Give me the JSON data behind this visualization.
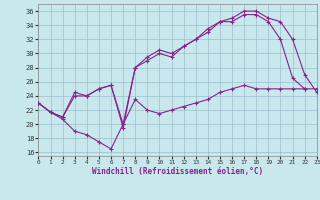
{
  "xlabel": "Windchill (Refroidissement éolien,°C)",
  "xlim": [
    0,
    23
  ],
  "ylim": [
    15.5,
    37
  ],
  "xticks": [
    0,
    1,
    2,
    3,
    4,
    5,
    6,
    7,
    8,
    9,
    10,
    11,
    12,
    13,
    14,
    15,
    16,
    17,
    18,
    19,
    20,
    21,
    22,
    23
  ],
  "yticks": [
    16,
    18,
    20,
    22,
    24,
    26,
    28,
    30,
    32,
    34,
    36
  ],
  "bg_color": "#c8e8ee",
  "grid_color": "#9bbfcc",
  "line_color": "#882288",
  "line1_x": [
    0,
    1,
    2,
    3,
    4,
    5,
    6,
    7,
    8,
    9,
    10,
    11,
    12,
    13,
    14,
    15,
    16,
    17,
    18,
    19,
    20,
    21,
    22,
    23
  ],
  "line1_y": [
    23,
    21.7,
    20.7,
    19.0,
    18.5,
    17.5,
    16.5,
    20.0,
    23.5,
    22.0,
    21.5,
    22.0,
    22.5,
    23.0,
    23.5,
    24.5,
    25.0,
    25.5,
    25.0,
    25.0,
    25.0,
    25.0,
    25.0,
    25.0
  ],
  "line2_x": [
    0,
    1,
    2,
    3,
    4,
    5,
    6,
    7,
    8,
    9,
    10,
    11,
    12,
    13,
    14,
    15,
    16,
    17,
    18,
    19,
    20,
    21,
    22
  ],
  "line2_y": [
    23,
    21.7,
    21.0,
    24.5,
    24.0,
    25.0,
    25.5,
    19.5,
    28.0,
    29.5,
    30.5,
    30.0,
    31.0,
    32.0,
    33.0,
    34.5,
    34.5,
    35.5,
    35.5,
    34.5,
    32.0,
    26.5,
    25.0
  ],
  "line3_x": [
    0,
    1,
    2,
    3,
    4,
    5,
    6,
    7,
    8,
    9,
    10,
    11,
    12,
    13,
    14,
    15,
    16,
    17,
    18,
    19,
    20,
    21,
    22,
    23
  ],
  "line3_y": [
    23,
    21.7,
    21.0,
    24.0,
    24.0,
    25.0,
    25.5,
    20.0,
    28.0,
    29.0,
    30.0,
    29.5,
    31.0,
    32.0,
    33.5,
    34.5,
    35.0,
    36.0,
    36.0,
    35.0,
    34.5,
    32.0,
    27.0,
    24.5
  ]
}
